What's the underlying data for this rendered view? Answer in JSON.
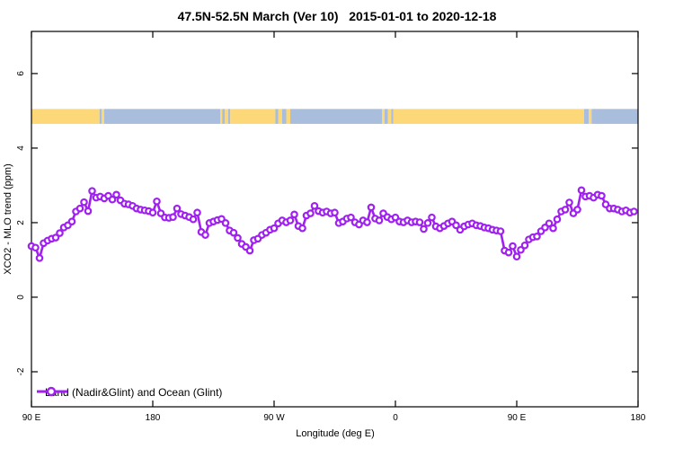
{
  "title": "47.5N-52.5N March (Ver 10)   2015-01-01 to 2020-12-18",
  "axes": {
    "x": {
      "label": "Longitude (deg E)",
      "ticks": [
        {
          "lon": 90,
          "label": "90 E"
        },
        {
          "lon": 180,
          "label": "180"
        },
        {
          "lon": 270,
          "label": "90 W"
        },
        {
          "lon": 360,
          "label": "0"
        },
        {
          "lon": 450,
          "label": "90 E"
        },
        {
          "lon": 540,
          "label": "180"
        }
      ]
    },
    "y": {
      "label": "XCO2 - MLO trend (ppm)",
      "ticks": [
        {
          "value": -2,
          "label": "-2"
        },
        {
          "value": 0,
          "label": "0"
        },
        {
          "value": 2,
          "label": "2"
        },
        {
          "value": 4,
          "label": "4"
        },
        {
          "value": 6,
          "label": "6"
        }
      ]
    }
  },
  "legend": {
    "label": "Land (Nadir&Glint) and Ocean (Glint)"
  },
  "colors": {
    "series": "#A020F0",
    "marker_fill": "#FFFFFF",
    "land": "#FCD879",
    "ocean": "#A9BEDC",
    "axis": "#000000"
  },
  "chart_data": {
    "type": "line",
    "title": "47.5N-52.5N March (Ver 10)   2015-01-01 to 2020-12-18",
    "xlabel": "Longitude (deg E)",
    "ylabel": "XCO2 - MLO trend (ppm)",
    "xlim": [
      90,
      540
    ],
    "ylim": [
      -2.94,
      7.13
    ],
    "x_axis_note": "longitude wraps eastward: 90E -> 180 -> 90W -> 0 -> 90E -> 180",
    "grid": false,
    "legend_position": "bottom-left inside plot",
    "surface_band": {
      "description": "land(yellow)/ocean(blue) strip drawn across the plot",
      "y_from": 4.65,
      "y_to": 5.05,
      "segments": [
        {
          "from": 90,
          "to": 140.5,
          "type": "land"
        },
        {
          "from": 140.5,
          "to": 142,
          "type": "ocean"
        },
        {
          "from": 142,
          "to": 144,
          "type": "land"
        },
        {
          "from": 144,
          "to": 230,
          "type": "ocean"
        },
        {
          "from": 230,
          "to": 231.5,
          "type": "land"
        },
        {
          "from": 231.5,
          "to": 233.5,
          "type": "ocean"
        },
        {
          "from": 233.5,
          "to": 236,
          "type": "land"
        },
        {
          "from": 236,
          "to": 237.5,
          "type": "ocean"
        },
        {
          "from": 237.5,
          "to": 271,
          "type": "land"
        },
        {
          "from": 271,
          "to": 273,
          "type": "ocean"
        },
        {
          "from": 273,
          "to": 276,
          "type": "land"
        },
        {
          "from": 276,
          "to": 279,
          "type": "ocean"
        },
        {
          "from": 279,
          "to": 282,
          "type": "land"
        },
        {
          "from": 282,
          "to": 350,
          "type": "ocean"
        },
        {
          "from": 350,
          "to": 352,
          "type": "land"
        },
        {
          "from": 352,
          "to": 354.5,
          "type": "ocean"
        },
        {
          "from": 354.5,
          "to": 357,
          "type": "land"
        },
        {
          "from": 357,
          "to": 358.5,
          "type": "ocean"
        },
        {
          "from": 358.5,
          "to": 500,
          "type": "land"
        },
        {
          "from": 500,
          "to": 503.5,
          "type": "ocean"
        },
        {
          "from": 503.5,
          "to": 505.5,
          "type": "land"
        },
        {
          "from": 505.5,
          "to": 540,
          "type": "ocean"
        }
      ]
    },
    "series": [
      {
        "name": "Land (Nadir&Glint) and Ocean (Glint)",
        "marker": "open-circle",
        "points": [
          [
            90,
            1.37
          ],
          [
            93,
            1.33
          ],
          [
            96,
            1.05
          ],
          [
            99,
            1.45
          ],
          [
            102,
            1.52
          ],
          [
            105,
            1.57
          ],
          [
            108,
            1.6
          ],
          [
            111,
            1.72
          ],
          [
            114,
            1.87
          ],
          [
            117,
            1.93
          ],
          [
            120,
            2.03
          ],
          [
            123,
            2.3
          ],
          [
            126,
            2.38
          ],
          [
            129,
            2.55
          ],
          [
            132,
            2.31
          ],
          [
            135,
            2.85
          ],
          [
            138,
            2.67
          ],
          [
            141,
            2.7
          ],
          [
            144,
            2.65
          ],
          [
            147,
            2.72
          ],
          [
            150,
            2.62
          ],
          [
            153,
            2.75
          ],
          [
            156,
            2.6
          ],
          [
            159,
            2.51
          ],
          [
            162,
            2.49
          ],
          [
            165,
            2.45
          ],
          [
            168,
            2.38
          ],
          [
            171,
            2.35
          ],
          [
            174,
            2.33
          ],
          [
            177,
            2.31
          ],
          [
            180,
            2.27
          ],
          [
            183,
            2.57
          ],
          [
            186,
            2.25
          ],
          [
            189,
            2.14
          ],
          [
            192,
            2.13
          ],
          [
            195,
            2.15
          ],
          [
            198,
            2.38
          ],
          [
            201,
            2.23
          ],
          [
            204,
            2.19
          ],
          [
            207,
            2.15
          ],
          [
            210,
            2.09
          ],
          [
            213,
            2.27
          ],
          [
            216,
            1.75
          ],
          [
            219,
            1.67
          ],
          [
            222,
            1.99
          ],
          [
            225,
            2.03
          ],
          [
            228,
            2.07
          ],
          [
            231,
            2.1
          ],
          [
            234,
            1.99
          ],
          [
            237,
            1.79
          ],
          [
            240,
            1.73
          ],
          [
            243,
            1.59
          ],
          [
            246,
            1.43
          ],
          [
            249,
            1.35
          ],
          [
            252,
            1.25
          ],
          [
            255,
            1.53
          ],
          [
            258,
            1.57
          ],
          [
            261,
            1.67
          ],
          [
            264,
            1.73
          ],
          [
            267,
            1.81
          ],
          [
            270,
            1.85
          ],
          [
            273,
            1.98
          ],
          [
            276,
            2.06
          ],
          [
            279,
            2.01
          ],
          [
            282,
            2.06
          ],
          [
            285,
            2.22
          ],
          [
            288,
            1.91
          ],
          [
            291,
            1.85
          ],
          [
            294,
            2.19
          ],
          [
            297,
            2.25
          ],
          [
            300,
            2.45
          ],
          [
            303,
            2.31
          ],
          [
            306,
            2.27
          ],
          [
            309,
            2.3
          ],
          [
            312,
            2.25
          ],
          [
            315,
            2.27
          ],
          [
            318,
            1.99
          ],
          [
            321,
            2.03
          ],
          [
            324,
            2.11
          ],
          [
            327,
            2.14
          ],
          [
            330,
            2.01
          ],
          [
            333,
            1.95
          ],
          [
            336,
            2.06
          ],
          [
            339,
            2.01
          ],
          [
            342,
            2.41
          ],
          [
            345,
            2.11
          ],
          [
            348,
            2.06
          ],
          [
            351,
            2.25
          ],
          [
            354,
            2.15
          ],
          [
            357,
            2.09
          ],
          [
            360,
            2.14
          ],
          [
            363,
            2.03
          ],
          [
            366,
            2.01
          ],
          [
            369,
            2.06
          ],
          [
            372,
            2.01
          ],
          [
            375,
            2.03
          ],
          [
            378,
            2.01
          ],
          [
            381,
            1.83
          ],
          [
            384,
            1.99
          ],
          [
            387,
            2.14
          ],
          [
            390,
            1.9
          ],
          [
            393,
            1.85
          ],
          [
            396,
            1.91
          ],
          [
            399,
            1.98
          ],
          [
            402,
            2.03
          ],
          [
            405,
            1.93
          ],
          [
            408,
            1.81
          ],
          [
            411,
            1.9
          ],
          [
            414,
            1.95
          ],
          [
            417,
            1.98
          ],
          [
            420,
            1.93
          ],
          [
            423,
            1.91
          ],
          [
            426,
            1.87
          ],
          [
            429,
            1.85
          ],
          [
            432,
            1.81
          ],
          [
            435,
            1.79
          ],
          [
            438,
            1.77
          ],
          [
            441,
            1.25
          ],
          [
            444,
            1.2
          ],
          [
            447,
            1.37
          ],
          [
            450,
            1.09
          ],
          [
            453,
            1.27
          ],
          [
            456,
            1.39
          ],
          [
            459,
            1.55
          ],
          [
            462,
            1.61
          ],
          [
            465,
            1.63
          ],
          [
            468,
            1.77
          ],
          [
            471,
            1.87
          ],
          [
            474,
            1.98
          ],
          [
            477,
            1.85
          ],
          [
            480,
            2.09
          ],
          [
            483,
            2.3
          ],
          [
            486,
            2.35
          ],
          [
            489,
            2.54
          ],
          [
            492,
            2.25
          ],
          [
            495,
            2.35
          ],
          [
            498,
            2.87
          ],
          [
            501,
            2.7
          ],
          [
            504,
            2.72
          ],
          [
            507,
            2.67
          ],
          [
            510,
            2.75
          ],
          [
            513,
            2.72
          ],
          [
            516,
            2.49
          ],
          [
            519,
            2.38
          ],
          [
            522,
            2.38
          ],
          [
            525,
            2.35
          ],
          [
            528,
            2.3
          ],
          [
            531,
            2.33
          ],
          [
            534,
            2.27
          ],
          [
            537,
            2.3
          ]
        ]
      }
    ]
  }
}
